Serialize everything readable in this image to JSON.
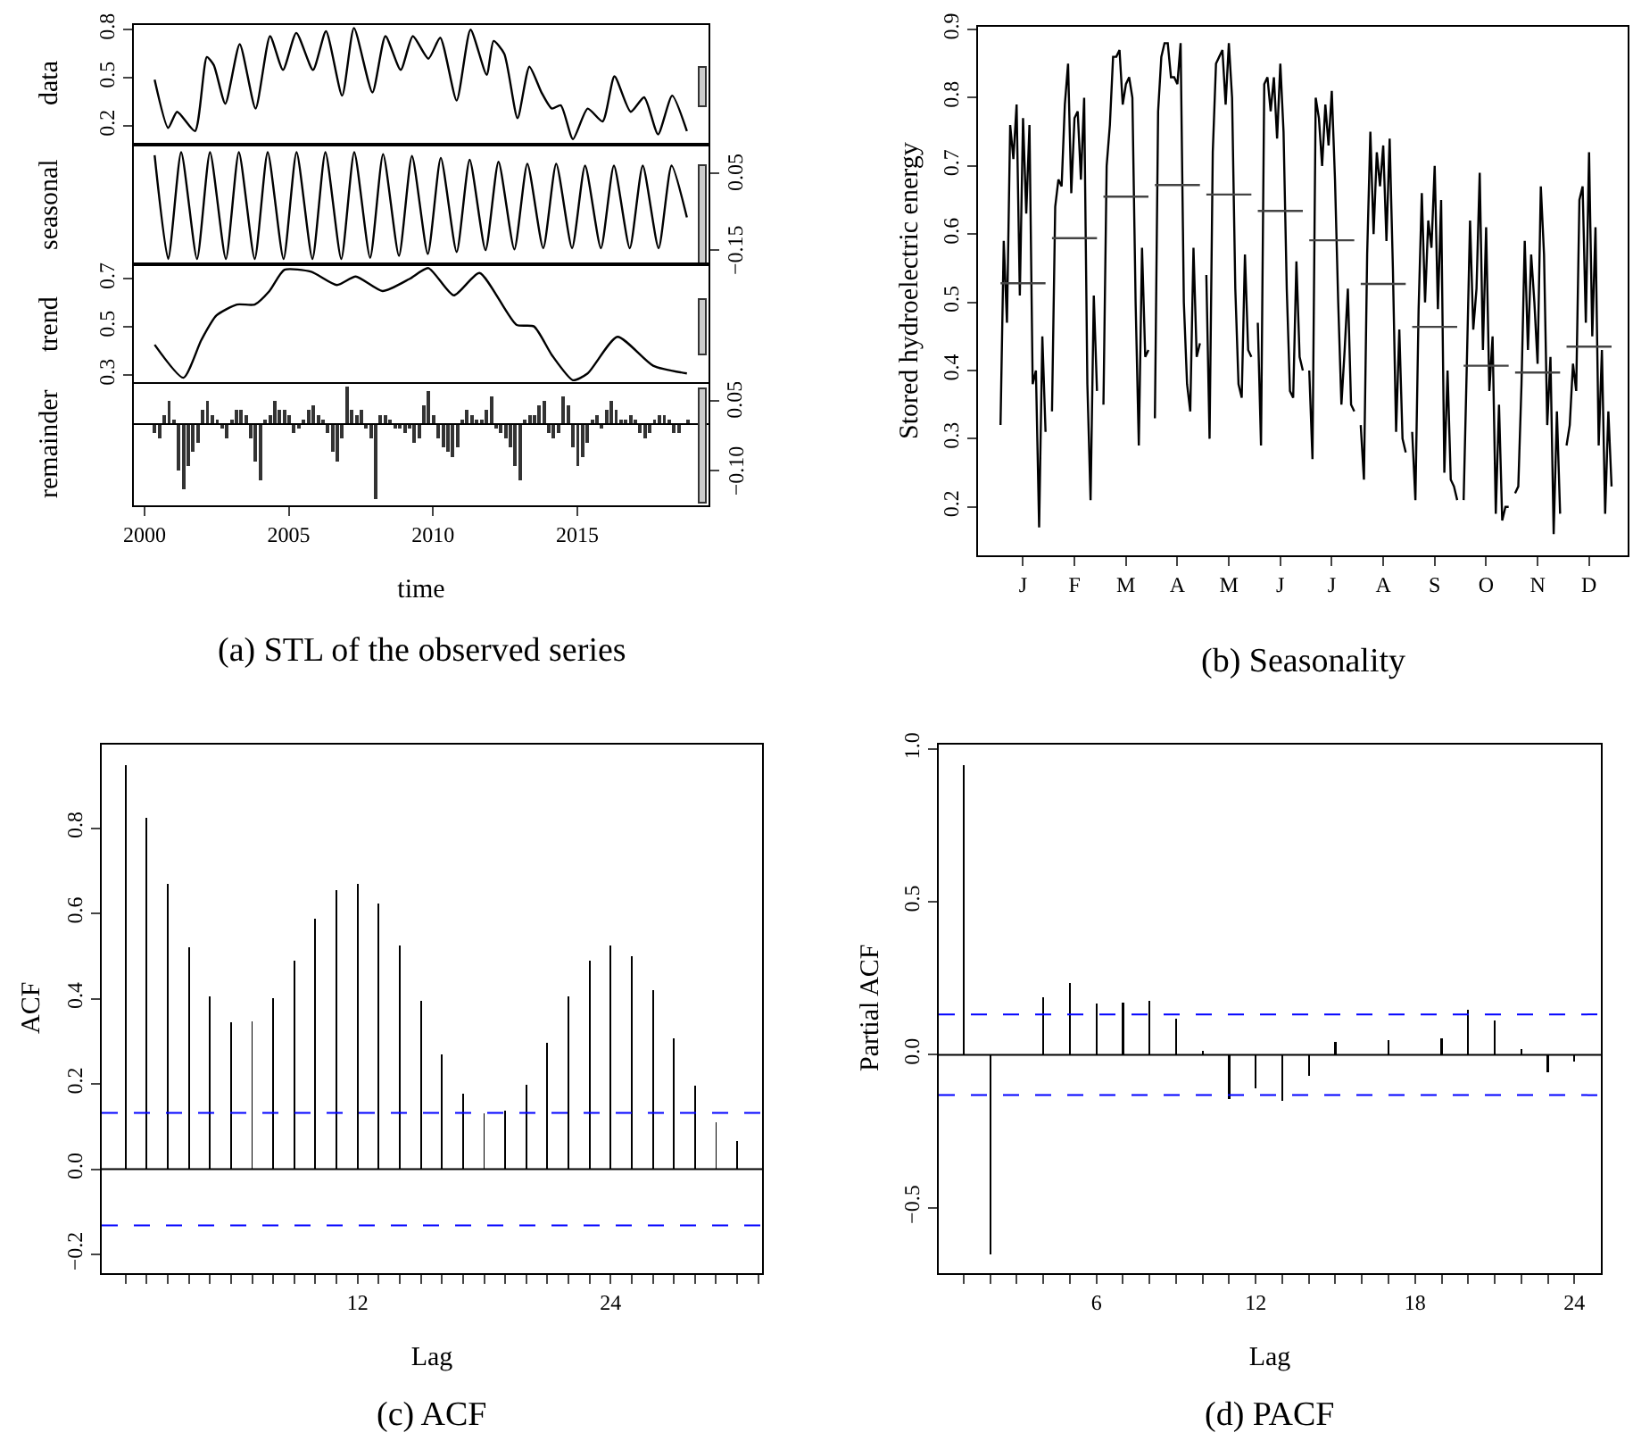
{
  "chart_data": [
    {
      "type": "line",
      "ylabel": "data",
      "xlim": [
        1999.63,
        2019.55
      ],
      "xticks": [
        2000,
        2005,
        2010,
        2015
      ],
      "ylim": [
        0.097,
        0.829
      ],
      "yticks": [
        0.2,
        0.5,
        0.8
      ],
      "tick_labels": "y",
      "series": [
        {
          "color": "#000000",
          "x": [
            2000.35,
            2000.82,
            2001.13,
            2001.75,
            2002.16,
            2002.4,
            2002.8,
            2003.3,
            2003.85,
            2004.35,
            2004.8,
            2005.26,
            2005.84,
            2006.29,
            2006.85,
            2007.26,
            2007.9,
            2008.35,
            2008.88,
            2009.3,
            2009.84,
            2010.25,
            2010.82,
            2011.3,
            2011.86,
            2012.1,
            2012.47,
            2012.93,
            2013.34,
            2013.76,
            2014.12,
            2014.43,
            2014.85,
            2015.36,
            2015.88,
            2016.29,
            2016.85,
            2017.32,
            2017.8,
            2018.29,
            2018.8
          ],
          "values": [
            0.49,
            0.19,
            0.29,
            0.17,
            0.63,
            0.58,
            0.34,
            0.71,
            0.31,
            0.76,
            0.55,
            0.78,
            0.55,
            0.79,
            0.39,
            0.81,
            0.41,
            0.76,
            0.55,
            0.76,
            0.62,
            0.75,
            0.36,
            0.8,
            0.52,
            0.73,
            0.65,
            0.25,
            0.57,
            0.41,
            0.31,
            0.33,
            0.12,
            0.31,
            0.23,
            0.51,
            0.29,
            0.38,
            0.15,
            0.39,
            0.17
          ]
        }
      ]
    },
    {
      "type": "line",
      "ylabel": "seasonal",
      "xlim": [
        1999.63,
        2019.55
      ],
      "xticks": [
        2000,
        2005,
        2010,
        2015
      ],
      "y2lim": [
        -0.187,
        0.12
      ],
      "y2ticks": [
        {
          "value": -0.15,
          "label": "−0.15"
        },
        0.05
      ],
      "tick_labels": "y",
      "series": [
        {
          "color": "#000000",
          "axis": "y2",
          "x": [
            2000.35,
            2000.82,
            2001.27,
            2001.82,
            2002.27,
            2002.82,
            2003.27,
            2003.82,
            2004.27,
            2004.82,
            2005.27,
            2005.82,
            2006.27,
            2006.82,
            2007.27,
            2007.82,
            2008.27,
            2008.82,
            2009.27,
            2009.82,
            2010.27,
            2010.82,
            2011.27,
            2011.82,
            2012.27,
            2012.82,
            2013.27,
            2013.82,
            2014.27,
            2014.82,
            2015.27,
            2015.82,
            2016.27,
            2016.82,
            2017.27,
            2017.82,
            2018.27,
            2018.8
          ],
          "values": [
            0.097,
            -0.173,
            0.105,
            -0.173,
            0.105,
            -0.173,
            0.105,
            -0.173,
            0.105,
            -0.173,
            0.105,
            -0.173,
            0.105,
            -0.173,
            0.105,
            -0.17,
            0.1,
            -0.165,
            0.095,
            -0.16,
            0.09,
            -0.155,
            0.085,
            -0.15,
            0.08,
            -0.148,
            0.075,
            -0.145,
            0.075,
            -0.145,
            0.07,
            -0.145,
            0.07,
            -0.145,
            0.07,
            -0.145,
            0.07,
            -0.065
          ]
        }
      ]
    },
    {
      "type": "line",
      "ylabel": "trend",
      "xlim": [
        1999.63,
        2019.55
      ],
      "xticks": [
        2000,
        2005,
        2010,
        2015
      ],
      "ylim": [
        0.257,
        0.761
      ],
      "yticks": [
        0.3,
        0.5,
        0.7
      ],
      "tick_labels": "y",
      "series": [
        {
          "color": "#000000",
          "x": [
            2000.35,
            2001.35,
            2001.97,
            2002.49,
            2003.2,
            2003.82,
            2004.33,
            2004.85,
            2005.78,
            2006.67,
            2007.32,
            2008.25,
            2009.18,
            2009.84,
            2010.72,
            2011.61,
            2012.89,
            2013.5,
            2014.12,
            2014.85,
            2015.36,
            2016.39,
            2017.63,
            2018.8
          ],
          "values": [
            0.427,
            0.29,
            0.447,
            0.548,
            0.594,
            0.594,
            0.65,
            0.738,
            0.73,
            0.675,
            0.71,
            0.65,
            0.7,
            0.745,
            0.632,
            0.725,
            0.51,
            0.503,
            0.384,
            0.28,
            0.308,
            0.46,
            0.34,
            0.308
          ]
        }
      ]
    },
    {
      "type": "bar",
      "ylabel": "remainder",
      "xlabel": "time",
      "xlim": [
        1999.63,
        2019.55
      ],
      "xticks": [
        2000,
        2005,
        2010,
        2015
      ],
      "y2lim": [
        -0.174,
        0.086
      ],
      "y2ticks": [
        {
          "value": -0.1,
          "label": "−0.10"
        },
        0.05
      ],
      "ref_lines": [
        {
          "axis": "y2",
          "value": 0,
          "color": "#000000",
          "line_style": "solid"
        }
      ],
      "annotations": [
        "(a) STL of the observed series"
      ],
      "series": [
        {
          "color": "#333333",
          "axis": "y2",
          "x": [
            2000.35,
            2000.52,
            2000.68,
            2000.85,
            2001.02,
            2001.18,
            2001.35,
            2001.52,
            2001.68,
            2001.85,
            2002.02,
            2002.18,
            2002.35,
            2002.52,
            2002.68,
            2002.85,
            2003.02,
            2003.18,
            2003.35,
            2003.52,
            2003.68,
            2003.85,
            2004.02,
            2004.18,
            2004.35,
            2004.52,
            2004.68,
            2004.85,
            2005.02,
            2005.18,
            2005.35,
            2005.52,
            2005.68,
            2005.85,
            2006.02,
            2006.18,
            2006.35,
            2006.52,
            2006.68,
            2006.85,
            2007.02,
            2007.18,
            2007.35,
            2007.52,
            2007.68,
            2007.85,
            2008.02,
            2008.18,
            2008.35,
            2008.52,
            2008.68,
            2008.85,
            2009.02,
            2009.18,
            2009.35,
            2009.52,
            2009.68,
            2009.85,
            2010.02,
            2010.18,
            2010.35,
            2010.52,
            2010.68,
            2010.85,
            2011.02,
            2011.18,
            2011.35,
            2011.52,
            2011.68,
            2011.85,
            2012.02,
            2012.18,
            2012.35,
            2012.52,
            2012.68,
            2012.85,
            2013.02,
            2013.18,
            2013.35,
            2013.52,
            2013.68,
            2013.85,
            2014.02,
            2014.18,
            2014.35,
            2014.52,
            2014.68,
            2014.85,
            2015.02,
            2015.18,
            2015.35,
            2015.52,
            2015.68,
            2015.85,
            2016.02,
            2016.18,
            2016.35,
            2016.52,
            2016.68,
            2016.85,
            2017.02,
            2017.18,
            2017.35,
            2017.52,
            2017.68,
            2017.85,
            2018.02,
            2018.18,
            2018.35,
            2018.52,
            2018.68,
            2018.85
          ],
          "values": [
            -0.02,
            -0.03,
            0.02,
            0.05,
            0.01,
            -0.1,
            -0.14,
            -0.09,
            -0.06,
            -0.04,
            0.03,
            0.05,
            0.02,
            0.01,
            -0.01,
            -0.03,
            0.01,
            0.03,
            0.03,
            0.02,
            -0.03,
            -0.08,
            -0.12,
            0.01,
            0.02,
            0.05,
            0.03,
            0.03,
            0.02,
            -0.02,
            -0.01,
            0.01,
            0.03,
            0.04,
            0.02,
            0.01,
            -0.02,
            -0.06,
            -0.08,
            -0.03,
            0.08,
            0.03,
            0.02,
            0.03,
            -0.01,
            -0.03,
            -0.16,
            0.02,
            0.02,
            0.01,
            -0.01,
            -0.01,
            -0.02,
            -0.01,
            -0.04,
            -0.03,
            0.04,
            0.07,
            0.02,
            -0.03,
            -0.05,
            -0.06,
            -0.07,
            -0.05,
            0.01,
            0.03,
            0.02,
            0.01,
            0.01,
            0.03,
            0.06,
            -0.01,
            -0.02,
            -0.03,
            -0.05,
            -0.09,
            -0.12,
            0.01,
            0.02,
            0.02,
            0.04,
            0.05,
            -0.02,
            -0.03,
            -0.02,
            0.06,
            0.04,
            -0.05,
            -0.09,
            -0.07,
            -0.04,
            0.01,
            0.02,
            -0.01,
            0.03,
            0.05,
            0.03,
            0.01,
            0.01,
            0.02,
            0.01,
            -0.02,
            -0.03,
            -0.02,
            0.01,
            0.02,
            0.02,
            0.01,
            -0.02,
            -0.02,
            0.0,
            0.01
          ]
        }
      ]
    },
    {
      "type": "line",
      "ylabel": "Stored hydroelectric energy",
      "ylim": [
        0.129,
        0.904
      ],
      "yticks": [
        0.2,
        0.3,
        0.4,
        0.5,
        0.6,
        0.7,
        0.8,
        0.9
      ],
      "categories": [
        null,
        null,
        null,
        null,
        null,
        null,
        null,
        "J",
        null,
        null,
        null,
        null,
        null,
        null,
        null,
        null,
        null,
        null,
        null,
        null,
        null,
        null,
        null,
        "F",
        null,
        null,
        null,
        null,
        null,
        null,
        null,
        null,
        null,
        null,
        null,
        null,
        null,
        null,
        null,
        "M",
        null,
        null,
        null,
        null,
        null,
        null,
        null,
        null,
        null,
        null,
        null,
        null,
        null,
        null,
        null,
        "A",
        null,
        null,
        null,
        null,
        null,
        null,
        null,
        null,
        null,
        null,
        null,
        null,
        null,
        null,
        null,
        "M",
        null,
        null,
        null,
        null,
        null,
        null,
        null,
        null,
        null,
        null,
        null,
        null,
        null,
        null,
        null,
        "J",
        null,
        null,
        null,
        null,
        null,
        null,
        null,
        null,
        null,
        null,
        null,
        null,
        null,
        null,
        null,
        "J",
        null,
        null,
        null,
        null,
        null,
        null,
        null,
        null,
        null,
        null,
        null,
        null,
        null,
        null,
        null,
        "A",
        null,
        null,
        null,
        null,
        null,
        null,
        null,
        null,
        null,
        null,
        null,
        null,
        null,
        null,
        null,
        "S",
        null,
        null,
        null,
        null,
        null,
        null,
        null,
        null,
        null,
        null,
        null,
        null,
        null,
        null,
        null,
        "O",
        null,
        null,
        null,
        null,
        null,
        null,
        null,
        null,
        null,
        null,
        null,
        null,
        null,
        null,
        null,
        "N",
        null,
        null,
        null,
        null,
        null,
        null,
        null,
        null,
        null,
        null,
        null,
        null,
        null,
        null,
        null,
        "D",
        null,
        null,
        null,
        null,
        null,
        null,
        null
      ],
      "annotations": [
        "(b) Seasonality"
      ],
      "series": [
        {
          "color": "#000000",
          "values": [
            0.32,
            0.59,
            0.47,
            0.76,
            0.71,
            0.79,
            0.51,
            0.77,
            0.63,
            0.76,
            0.38,
            0.4,
            0.17,
            0.45,
            0.31,
            null,
            0.34,
            0.64,
            0.68,
            0.67,
            0.79,
            0.85,
            0.66,
            0.77,
            0.78,
            0.68,
            0.8,
            0.38,
            0.21,
            0.51,
            0.37,
            null,
            0.35,
            0.7,
            0.76,
            0.86,
            0.86,
            0.87,
            0.79,
            0.82,
            0.83,
            0.8,
            0.5,
            0.29,
            0.58,
            0.42,
            0.43,
            null,
            0.33,
            0.78,
            0.86,
            0.88,
            0.88,
            0.83,
            0.83,
            0.82,
            0.88,
            0.5,
            0.38,
            0.34,
            0.58,
            0.42,
            0.44,
            null,
            0.54,
            0.3,
            0.72,
            0.85,
            0.86,
            0.87,
            0.79,
            0.88,
            0.8,
            0.52,
            0.38,
            0.36,
            0.57,
            0.43,
            0.42,
            null,
            0.47,
            0.29,
            0.82,
            0.83,
            0.78,
            0.83,
            0.74,
            0.85,
            0.75,
            0.52,
            0.37,
            0.36,
            0.56,
            0.42,
            0.4,
            null,
            0.4,
            0.27,
            0.8,
            0.77,
            0.7,
            0.79,
            0.73,
            0.81,
            0.68,
            0.5,
            0.35,
            0.43,
            0.52,
            0.35,
            0.34,
            null,
            0.32,
            0.24,
            0.57,
            0.75,
            0.6,
            0.72,
            0.67,
            0.73,
            0.59,
            0.74,
            0.55,
            0.31,
            0.46,
            0.3,
            0.28,
            null,
            0.31,
            0.21,
            0.49,
            0.66,
            0.5,
            0.62,
            0.58,
            0.7,
            0.49,
            0.65,
            0.25,
            0.4,
            0.24,
            0.23,
            0.21,
            null,
            0.21,
            0.41,
            0.62,
            0.46,
            0.52,
            0.69,
            0.43,
            0.61,
            0.37,
            0.45,
            0.19,
            0.35,
            0.18,
            0.2,
            0.2,
            null,
            0.22,
            0.23,
            0.38,
            0.59,
            0.43,
            0.57,
            0.5,
            0.41,
            0.67,
            0.57,
            0.32,
            0.42,
            0.16,
            0.34,
            0.19,
            null,
            0.29,
            0.32,
            0.41,
            0.37,
            0.65,
            0.67,
            0.47,
            0.72,
            0.45,
            0.61,
            0.29,
            0.43,
            0.19,
            0.34,
            0.23
          ]
        },
        {
          "color": "#444444",
          "values": [
            0.528,
            0.528,
            0.528,
            0.528,
            0.528,
            0.528,
            0.528,
            0.528,
            0.528,
            0.528,
            0.528,
            0.528,
            0.528,
            0.528,
            0.528,
            null,
            0.594,
            0.594,
            0.594,
            0.594,
            0.594,
            0.594,
            0.594,
            0.594,
            0.594,
            0.594,
            0.594,
            0.594,
            0.594,
            0.594,
            0.594,
            null,
            0.655,
            0.655,
            0.655,
            0.655,
            0.655,
            0.655,
            0.655,
            0.655,
            0.655,
            0.655,
            0.655,
            0.655,
            0.655,
            0.655,
            0.655,
            null,
            0.672,
            0.672,
            0.672,
            0.672,
            0.672,
            0.672,
            0.672,
            0.672,
            0.672,
            0.672,
            0.672,
            0.672,
            0.672,
            0.672,
            0.672,
            null,
            0.658,
            0.658,
            0.658,
            0.658,
            0.658,
            0.658,
            0.658,
            0.658,
            0.658,
            0.658,
            0.658,
            0.658,
            0.658,
            0.658,
            0.658,
            null,
            0.634,
            0.634,
            0.634,
            0.634,
            0.634,
            0.634,
            0.634,
            0.634,
            0.634,
            0.634,
            0.634,
            0.634,
            0.634,
            0.634,
            0.634,
            null,
            0.591,
            0.591,
            0.591,
            0.591,
            0.591,
            0.591,
            0.591,
            0.591,
            0.591,
            0.591,
            0.591,
            0.591,
            0.591,
            0.591,
            0.591,
            null,
            0.527,
            0.527,
            0.527,
            0.527,
            0.527,
            0.527,
            0.527,
            0.527,
            0.527,
            0.527,
            0.527,
            0.527,
            0.527,
            0.527,
            0.527,
            null,
            0.464,
            0.464,
            0.464,
            0.464,
            0.464,
            0.464,
            0.464,
            0.464,
            0.464,
            0.464,
            0.464,
            0.464,
            0.464,
            0.464,
            0.464,
            null,
            0.407,
            0.407,
            0.407,
            0.407,
            0.407,
            0.407,
            0.407,
            0.407,
            0.407,
            0.407,
            0.407,
            0.407,
            0.407,
            0.407,
            0.407,
            null,
            0.397,
            0.397,
            0.397,
            0.397,
            0.397,
            0.397,
            0.397,
            0.397,
            0.397,
            0.397,
            0.397,
            0.397,
            0.397,
            0.397,
            0.397,
            null,
            0.435,
            0.435,
            0.435,
            0.435,
            0.435,
            0.435,
            0.435,
            0.435,
            0.435,
            0.435,
            0.435,
            0.435,
            0.435,
            0.435,
            0.435
          ]
        }
      ]
    },
    {
      "type": "bar",
      "ylabel": "ACF",
      "xlabel": "Lag",
      "xlim": [
        -0.13,
        31.18
      ],
      "xticks": [
        {
          "value": 1,
          "label": null
        },
        {
          "value": 2,
          "label": null
        },
        {
          "value": 3,
          "label": null
        },
        {
          "value": 4,
          "label": null
        },
        {
          "value": 5,
          "label": null
        },
        {
          "value": 6,
          "label": null
        },
        {
          "value": 7,
          "label": null
        },
        {
          "value": 8,
          "label": null
        },
        {
          "value": 9,
          "label": null
        },
        {
          "value": 10,
          "label": null
        },
        {
          "value": 11,
          "label": null
        },
        12,
        {
          "value": 13,
          "label": null
        },
        {
          "value": 14,
          "label": null
        },
        {
          "value": 15,
          "label": null
        },
        {
          "value": 16,
          "label": null
        },
        {
          "value": 17,
          "label": null
        },
        {
          "value": 18,
          "label": null
        },
        {
          "value": 19,
          "label": null
        },
        {
          "value": 20,
          "label": null
        },
        {
          "value": 21,
          "label": null
        },
        {
          "value": 22,
          "label": null
        },
        {
          "value": 23,
          "label": null
        },
        24,
        {
          "value": 25,
          "label": null
        },
        {
          "value": 26,
          "label": null
        },
        {
          "value": 27,
          "label": null
        },
        {
          "value": 28,
          "label": null
        },
        {
          "value": 29,
          "label": null
        },
        {
          "value": 30,
          "label": null
        },
        {
          "value": 31,
          "label": null
        }
      ],
      "ylim": [
        -0.244,
        0.996
      ],
      "yticks": [
        {
          "value": -0.2,
          "label": "−0.2"
        },
        {
          "value": 0,
          "label": "0.0"
        },
        0.2,
        0.4,
        0.6,
        0.8
      ],
      "ref_lines": [
        {
          "axis": "y",
          "value": 0,
          "color": "#000000",
          "line_style": "solid"
        },
        {
          "axis": "y",
          "value": 0.132,
          "color": "#0000ff",
          "line_style": "dashed"
        },
        {
          "axis": "y",
          "value": -0.132,
          "color": "#0000ff",
          "line_style": "dashed"
        }
      ],
      "annotations": [
        "(c) ACF"
      ],
      "series": [
        {
          "color": "#000000",
          "x": [
            1,
            2,
            3,
            4,
            5,
            6,
            7,
            8,
            9,
            10,
            11,
            12,
            13,
            14,
            15,
            16,
            17,
            18,
            19,
            20,
            21,
            22,
            23,
            24,
            25,
            26,
            27,
            28,
            29,
            30
          ],
          "values": [
            0.947,
            0.825,
            0.67,
            0.52,
            0.405,
            0.345,
            0.346,
            0.402,
            0.49,
            0.587,
            0.654,
            0.67,
            0.623,
            0.524,
            0.395,
            0.27,
            0.176,
            0.13,
            0.137,
            0.197,
            0.296,
            0.405,
            0.489,
            0.525,
            0.499,
            0.419,
            0.307,
            0.196,
            0.109,
            0.067
          ]
        }
      ]
    },
    {
      "type": "bar",
      "ylabel": "Partial ACF",
      "xlabel": "Lag",
      "xlim": [
        0.06,
        25.0
      ],
      "xticks": [
        {
          "value": 1,
          "label": null
        },
        {
          "value": 2,
          "label": null
        },
        {
          "value": 3,
          "label": null
        },
        {
          "value": 4,
          "label": null
        },
        {
          "value": 5,
          "label": null
        },
        6,
        {
          "value": 7,
          "label": null
        },
        {
          "value": 8,
          "label": null
        },
        {
          "value": 9,
          "label": null
        },
        {
          "value": 10,
          "label": null
        },
        {
          "value": 11,
          "label": null
        },
        12,
        {
          "value": 13,
          "label": null
        },
        {
          "value": 14,
          "label": null
        },
        {
          "value": 15,
          "label": null
        },
        {
          "value": 16,
          "label": null
        },
        {
          "value": 17,
          "label": null
        },
        18,
        {
          "value": 19,
          "label": null
        },
        {
          "value": 20,
          "label": null
        },
        {
          "value": 21,
          "label": null
        },
        {
          "value": 22,
          "label": null
        },
        {
          "value": 23,
          "label": null
        },
        24
      ],
      "ylim": [
        -0.714,
        1.014
      ],
      "yticks": [
        {
          "value": -0.5,
          "label": "−0.5"
        },
        {
          "value": 0,
          "label": "0.0"
        },
        0.5,
        {
          "value": 1,
          "label": "1.0"
        }
      ],
      "ref_lines": [
        {
          "axis": "y",
          "value": 0,
          "color": "#000000",
          "line_style": "solid"
        },
        {
          "axis": "y",
          "value": 0.132,
          "color": "#0000ff",
          "line_style": "dashed"
        },
        {
          "axis": "y",
          "value": -0.132,
          "color": "#0000ff",
          "line_style": "dashed"
        }
      ],
      "annotations": [
        "(d) PACF"
      ],
      "series": [
        {
          "color": "#000000",
          "x": [
            1,
            2,
            3,
            4,
            5,
            6,
            7,
            8,
            9,
            10,
            11,
            12,
            13,
            14,
            15,
            16,
            17,
            18,
            19,
            20,
            21,
            22,
            23,
            24
          ],
          "values": [
            0.946,
            -0.654,
            null,
            0.189,
            0.235,
            0.167,
            0.171,
            0.175,
            0.119,
            0.012,
            -0.146,
            -0.111,
            -0.15,
            -0.07,
            0.043,
            null,
            0.049,
            null,
            0.054,
            0.148,
            0.111,
            0.019,
            -0.058,
            -0.021
          ]
        }
      ]
    }
  ]
}
